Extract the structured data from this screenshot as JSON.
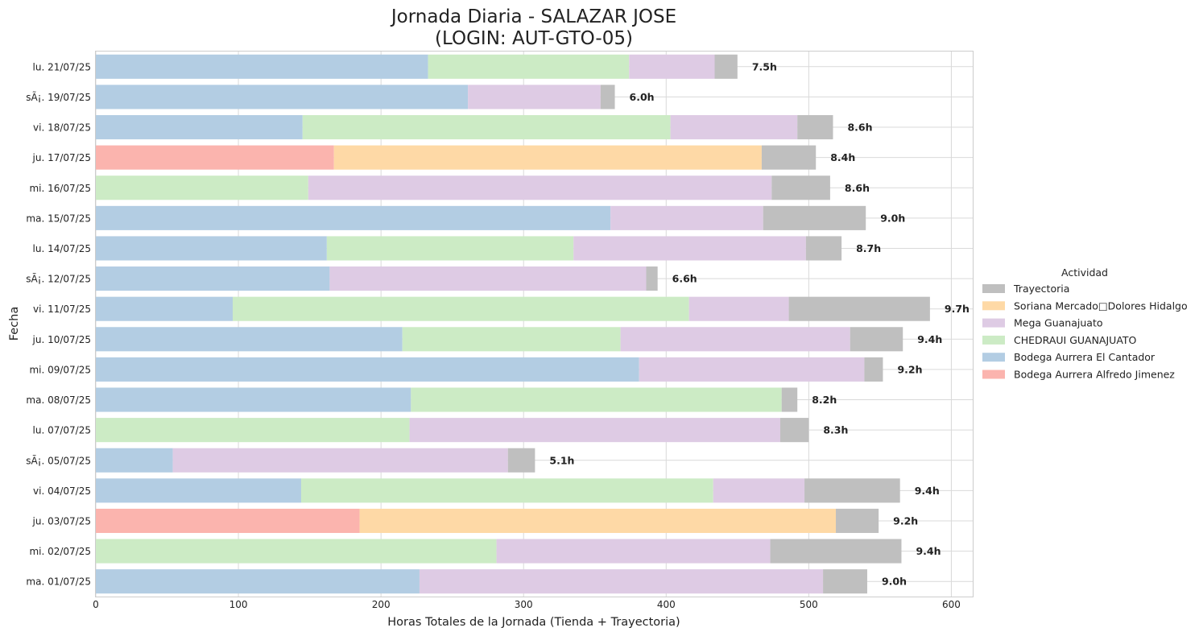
{
  "chart_data": {
    "type": "bar",
    "orientation": "horizontal",
    "stacked": true,
    "title": "Jornada Diaria - SALAZAR JOSE",
    "subtitle": "(LOGIN: AUT-GTO-05)",
    "xlabel": "Horas Totales de la Jornada (Tienda + Trayectoria)",
    "ylabel": "Fecha",
    "xlim": [
      0,
      615
    ],
    "xticks": [
      0,
      100,
      200,
      300,
      400,
      500,
      600
    ],
    "grid": true,
    "legend_title": "Actividad",
    "legend_position": "right",
    "categories": [
      "lu. 21/07/25",
      "sÃ¡. 19/07/25",
      "vi. 18/07/25",
      "ju. 17/07/25",
      "mi. 16/07/25",
      "ma. 15/07/25",
      "lu. 14/07/25",
      "sÃ¡. 12/07/25",
      "vi. 11/07/25",
      "ju. 10/07/25",
      "mi. 09/07/25",
      "ma. 08/07/25",
      "lu. 07/07/25",
      "sÃ¡. 05/07/25",
      "vi. 04/07/25",
      "ju. 03/07/25",
      "mi. 02/07/25",
      "ma. 01/07/25"
    ],
    "stack_order": [
      "Bodega Aurrera Alfredo Jimenez",
      "Bodega Aurrera El Cantador",
      "CHEDRAUI  GUANAJUATO",
      "Soriana Mercado□Dolores Hidalgo",
      "Mega Guanajuato",
      "Trayectoria"
    ],
    "series": [
      {
        "name": "Trayectoria",
        "color": "#bfbfbf",
        "values": [
          16,
          10,
          25,
          38,
          41,
          72,
          25,
          8,
          99,
          37,
          13,
          11,
          20,
          19,
          67,
          30,
          92,
          31
        ]
      },
      {
        "name": "Soriana Mercado□Dolores Hidalgo",
        "color": "#fed9a6",
        "values": [
          0,
          0,
          0,
          300,
          0,
          0,
          0,
          0,
          0,
          0,
          0,
          0,
          0,
          0,
          0,
          334,
          0,
          0
        ]
      },
      {
        "name": "Mega Guanajuato",
        "color": "#decbe4",
        "values": [
          60,
          93,
          89,
          0,
          325,
          107,
          163,
          222,
          70,
          161,
          158,
          0,
          260,
          235,
          64,
          0,
          192,
          283
        ]
      },
      {
        "name": "CHEDRAUI  GUANAJUATO",
        "color": "#ccebc5",
        "values": [
          141,
          0,
          258,
          0,
          149,
          0,
          173,
          0,
          320,
          153,
          0,
          260,
          220,
          0,
          289,
          0,
          281,
          0
        ]
      },
      {
        "name": "Bodega Aurrera El Cantador",
        "color": "#b3cde3",
        "values": [
          233,
          261,
          145,
          0,
          0,
          361,
          162,
          164,
          96,
          215,
          381,
          221,
          0,
          54,
          144,
          0,
          0,
          227
        ]
      },
      {
        "name": "Bodega Aurrera Alfredo Jimenez",
        "color": "#fbb4ae",
        "values": [
          0,
          0,
          0,
          167,
          0,
          0,
          0,
          0,
          0,
          0,
          0,
          0,
          0,
          0,
          0,
          185,
          0,
          0
        ]
      }
    ],
    "total_labels": [
      "7.5h",
      "6.0h",
      "8.6h",
      "8.4h",
      "8.6h",
      "9.0h",
      "8.7h",
      "6.6h",
      "9.7h",
      "9.4h",
      "9.2h",
      "8.2h",
      "8.3h",
      "5.1h",
      "9.4h",
      "9.2h",
      "9.4h",
      "9.0h"
    ]
  }
}
